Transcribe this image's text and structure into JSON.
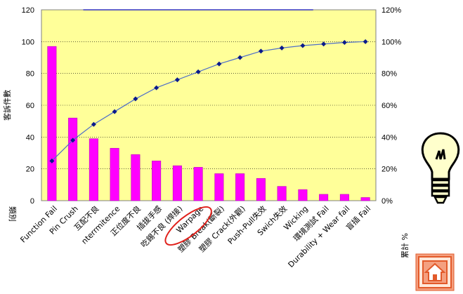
{
  "chart_data": {
    "type": "bar",
    "categories": [
      "Function Fail",
      "Pin Crush",
      "互配不良",
      "nterrmitence",
      "正位度不良",
      "插拔手感",
      "吃錫不良 (焊接)",
      "Warpage",
      "塑膠 Break(斷裂)",
      "塑膠 Crack(外觀)",
      "Push-Pull失效",
      "Swich失效",
      "Wicking",
      "環境測試 Fail",
      "Durability + Wear fail",
      "盲插 Fail"
    ],
    "series": [
      {
        "type": "bar",
        "values": [
          97,
          52,
          39,
          33,
          29,
          25,
          22,
          21,
          17,
          17,
          14,
          9,
          7,
          4,
          4,
          2
        ]
      },
      {
        "type": "line",
        "axis": "right",
        "values": [
          25,
          38,
          48,
          56,
          64,
          71,
          76,
          81,
          86,
          90,
          94,
          96,
          97.5,
          98.5,
          99.5,
          100
        ]
      }
    ],
    "ylabel": "客訴件數",
    "y2label": "累計 %",
    "xlabel": "類別",
    "ylim": [
      0,
      120
    ],
    "y2lim": [
      0,
      1.2
    ],
    "yticks": [
      "0",
      "20",
      "40",
      "60",
      "80",
      "100",
      "120"
    ],
    "y2ticks": [
      "0%",
      "20%",
      "40%",
      "60%",
      "80%",
      "100%",
      "120%"
    ],
    "highlighted_category": "Warpage",
    "grid": true,
    "colors": {
      "plot_bg": "#FFFF99",
      "bar": "#FF00FF",
      "line": "#4F6FC8",
      "marker": "#0A1A8C",
      "highlight": "#E0201A",
      "gridline": "#000000"
    }
  },
  "icons": {
    "lightbulb": "lightbulb-icon",
    "home": "home-icon"
  }
}
